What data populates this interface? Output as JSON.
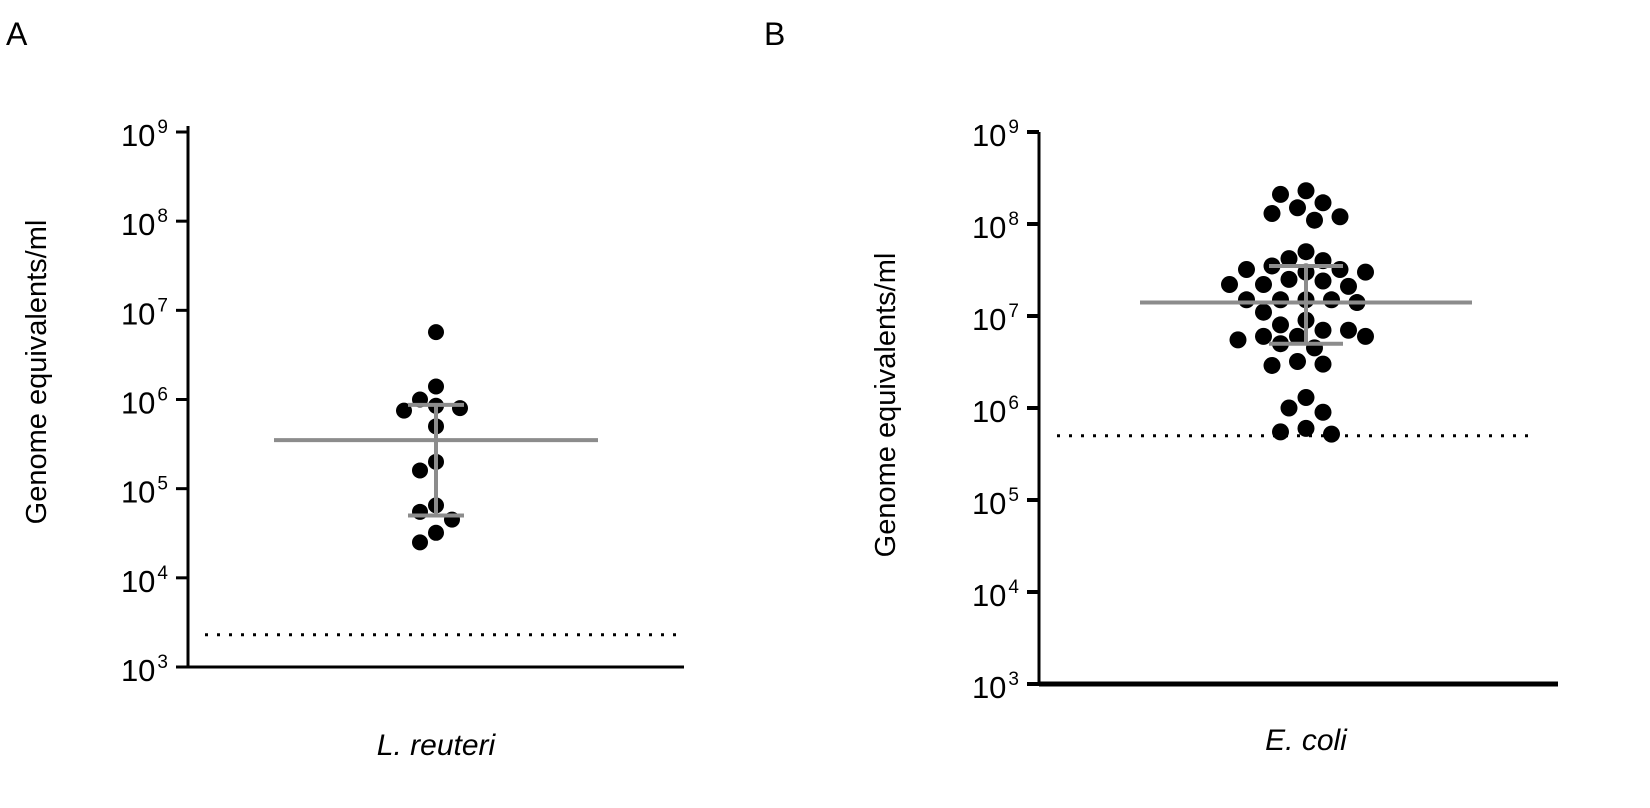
{
  "chart_data": [
    {
      "panel_label": "A",
      "type": "scatter",
      "ylabel": "Genome equivalents/ml",
      "xlabel": "L. reuteri",
      "yscale": "log",
      "ylim": [
        1000,
        1000000000
      ],
      "yticks": [
        {
          "value": 1000,
          "base": "10",
          "exp": "3"
        },
        {
          "value": 10000,
          "base": "10",
          "exp": "4"
        },
        {
          "value": 100000,
          "base": "10",
          "exp": "5"
        },
        {
          "value": 1000000,
          "base": "10",
          "exp": "6"
        },
        {
          "value": 10000000,
          "base": "10",
          "exp": "7"
        },
        {
          "value": 100000000,
          "base": "10",
          "exp": "8"
        },
        {
          "value": 1000000000,
          "base": "10",
          "exp": "9"
        }
      ],
      "median": 350000,
      "iqr": [
        50000,
        870000
      ],
      "detection_limit": 2300,
      "series": [
        {
          "values": [
            5700000,
            1400000,
            1000000,
            850000,
            800000,
            750000,
            500000,
            200000,
            160000,
            65000,
            55000,
            45000,
            32000,
            25000
          ]
        }
      ]
    },
    {
      "panel_label": "B",
      "type": "scatter",
      "ylabel": "Genome equivalents/ml",
      "xlabel": "E. coli",
      "yscale": "log",
      "ylim": [
        1000,
        1000000000
      ],
      "yticks": [
        {
          "value": 1000,
          "base": "10",
          "exp": "3"
        },
        {
          "value": 10000,
          "base": "10",
          "exp": "4"
        },
        {
          "value": 100000,
          "base": "10",
          "exp": "5"
        },
        {
          "value": 1000000,
          "base": "10",
          "exp": "6"
        },
        {
          "value": 10000000,
          "base": "10",
          "exp": "7"
        },
        {
          "value": 100000000,
          "base": "10",
          "exp": "8"
        },
        {
          "value": 1000000000,
          "base": "10",
          "exp": "9"
        }
      ],
      "median": 14000000,
      "iqr": [
        5000000,
        35000000
      ],
      "detection_limit": 500000,
      "series": [
        {
          "values": [
            230000000,
            210000000,
            170000000,
            150000000,
            130000000,
            120000000,
            110000000,
            50000000,
            42000000,
            40000000,
            35000000,
            32000000,
            32000000,
            30000000,
            30000000,
            25000000,
            24000000,
            22000000,
            22000000,
            21000000,
            15000000,
            15000000,
            15000000,
            15000000,
            14000000,
            11000000,
            9000000,
            8000000,
            7000000,
            7000000,
            6000000,
            6000000,
            6000000,
            5500000,
            5000000,
            4500000,
            3200000,
            3000000,
            2900000,
            1300000,
            1000000,
            900000,
            600000,
            550000,
            520000
          ]
        }
      ]
    }
  ]
}
